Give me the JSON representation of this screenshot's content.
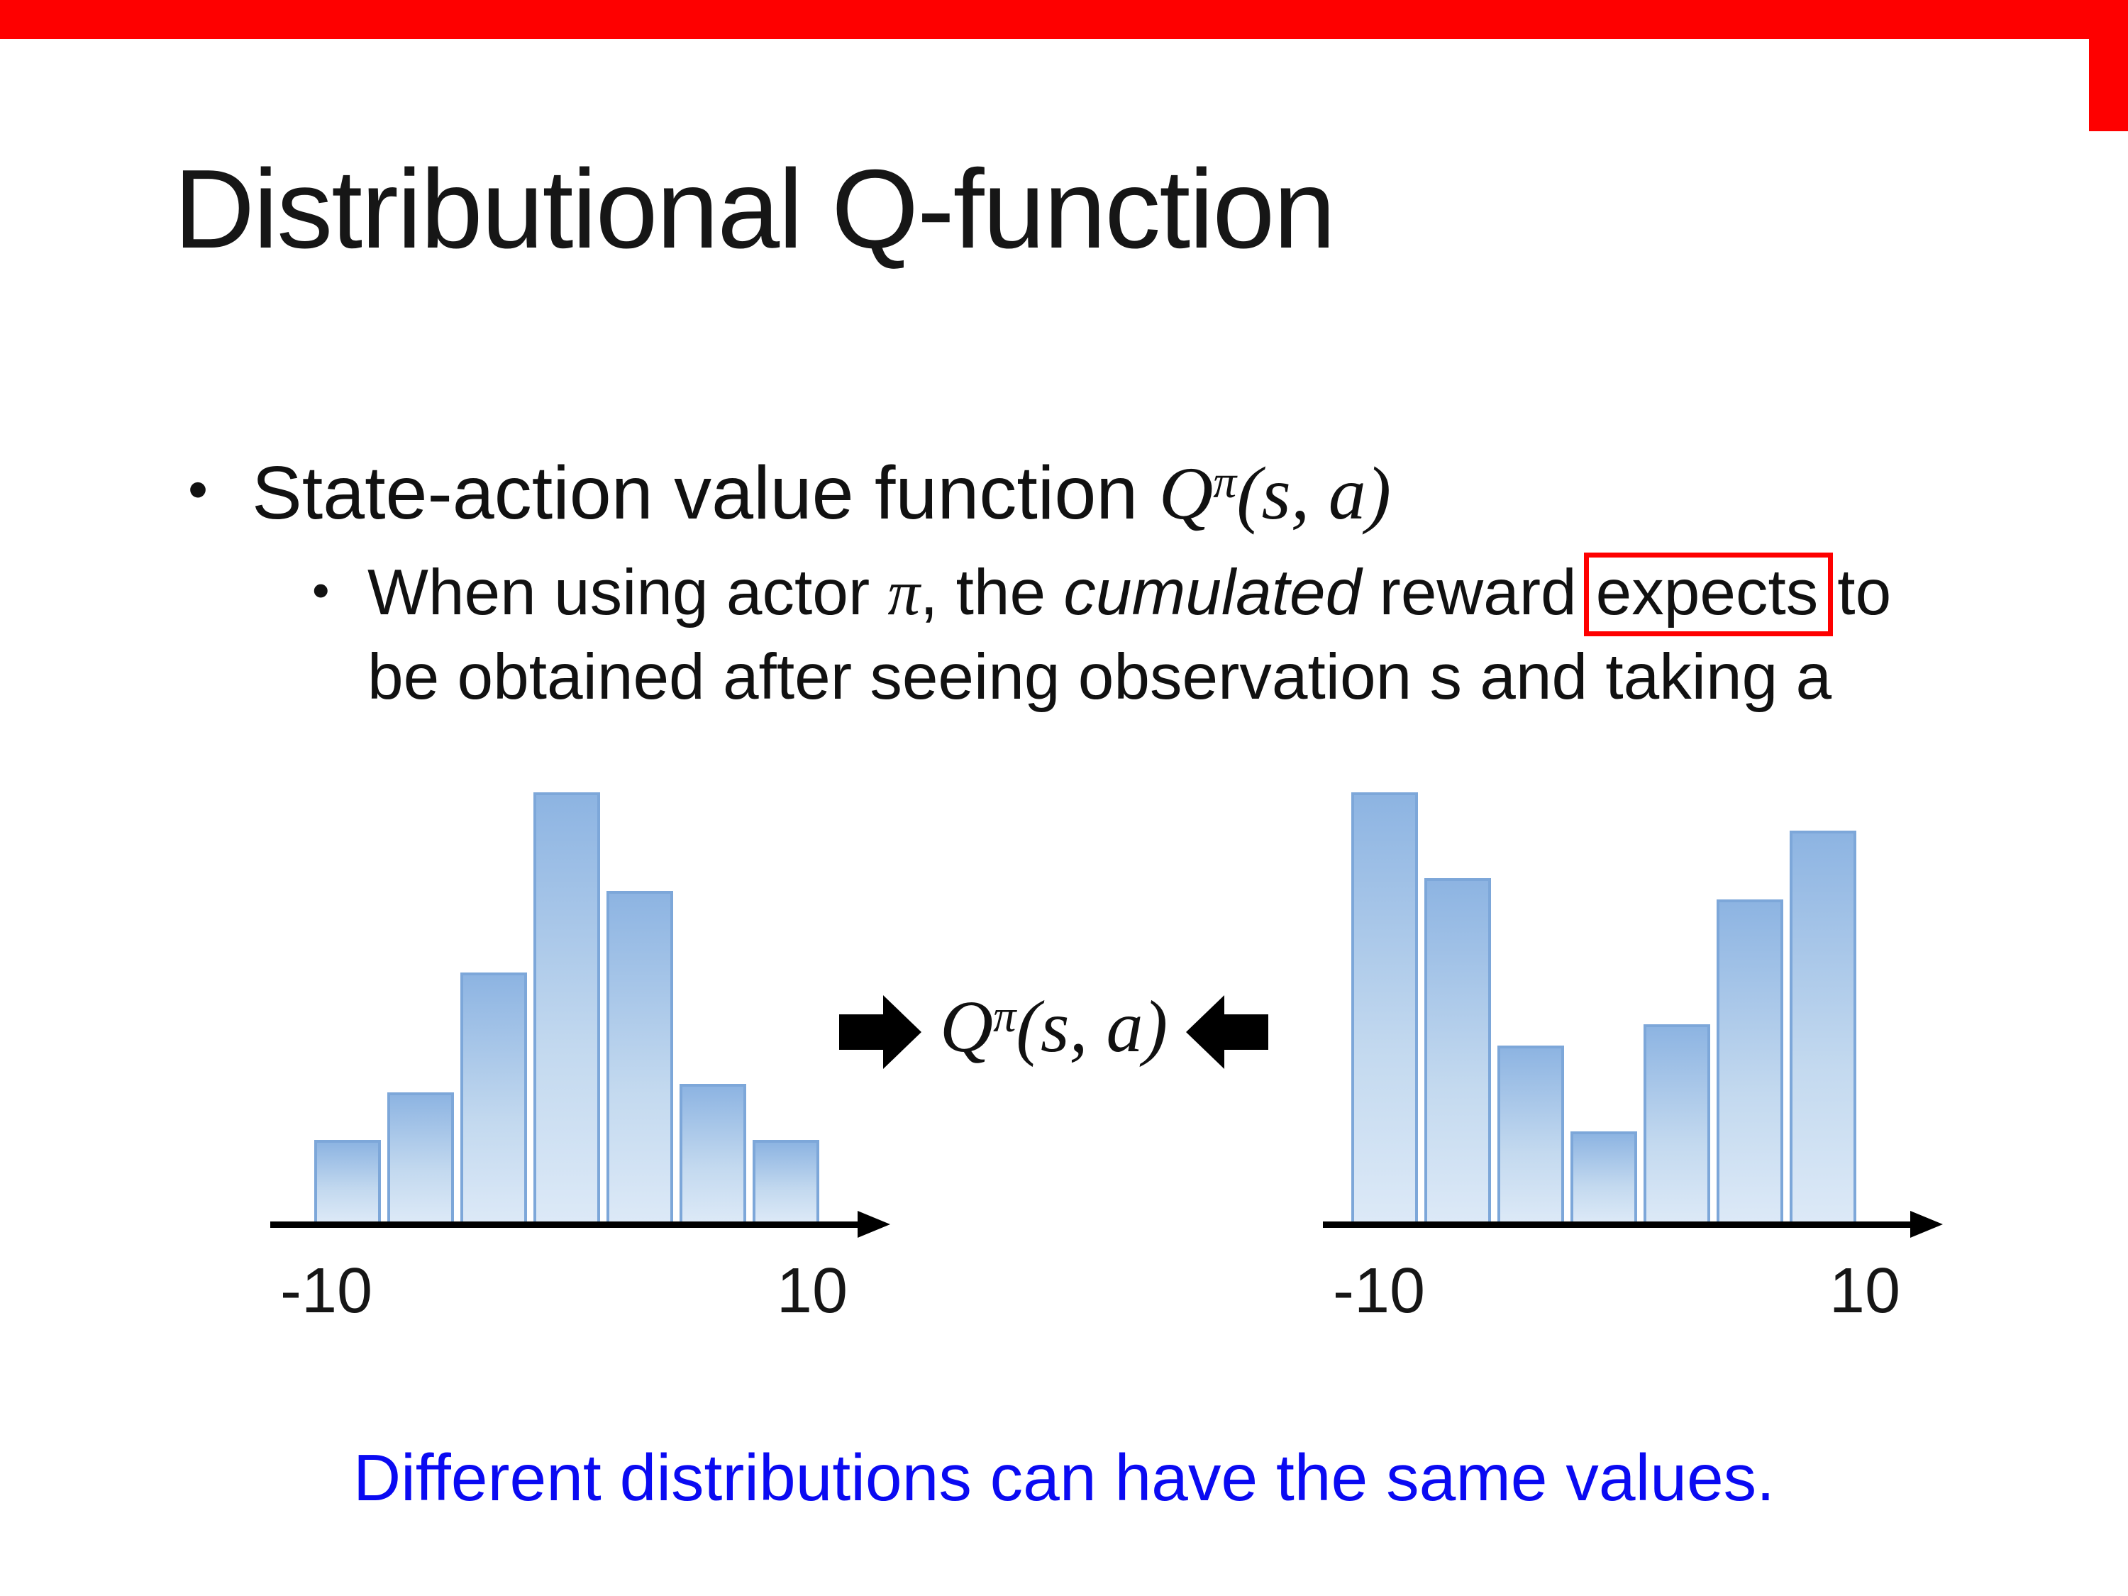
{
  "slide": {
    "title": "Distributional Q-function",
    "bullet_char": "•",
    "bullet1": {
      "text": "State-action value function "
    },
    "math": {
      "Q": "Q",
      "pi": "π",
      "args": "(s, a)"
    },
    "bullet2": {
      "part1": "When using actor ",
      "pi": "π",
      "part2": ", the ",
      "italic_word": "cumulated",
      "part3": " reward",
      "boxed_word": "expects",
      "part4a": "to",
      "part4b": "be obtained after seeing observation s and taking a"
    },
    "caption": "Different distributions can have the same values.",
    "colors": {
      "accent_red": "#fe0000",
      "caption_blue": "#0a0af2",
      "bar_border": "#7da7d9",
      "bar_fill_top": "#8db4e2",
      "bar_fill_bottom": "#dce9f7",
      "axis_black": "#000000"
    }
  },
  "chart_data": [
    {
      "type": "bar",
      "name": "left-histogram",
      "description": "unimodal bell-shaped reward distribution",
      "categories": [
        "b1",
        "b2",
        "b3",
        "b4",
        "b5",
        "b6",
        "b7"
      ],
      "values": [
        0.19,
        0.3,
        0.58,
        1.0,
        0.77,
        0.32,
        0.19
      ],
      "ylim": [
        0,
        1
      ],
      "grid": false,
      "x_axis": {
        "left_label": "-10",
        "right_label": "10"
      }
    },
    {
      "type": "bar",
      "name": "right-histogram",
      "description": "bimodal U-shaped reward distribution",
      "categories": [
        "b1",
        "b2",
        "b3",
        "b4",
        "b5",
        "b6",
        "b7"
      ],
      "values": [
        1.0,
        0.8,
        0.41,
        0.21,
        0.46,
        0.75,
        0.91
      ],
      "ylim": [
        0,
        1
      ],
      "grid": false,
      "x_axis": {
        "left_label": "-10",
        "right_label": "10"
      }
    }
  ]
}
